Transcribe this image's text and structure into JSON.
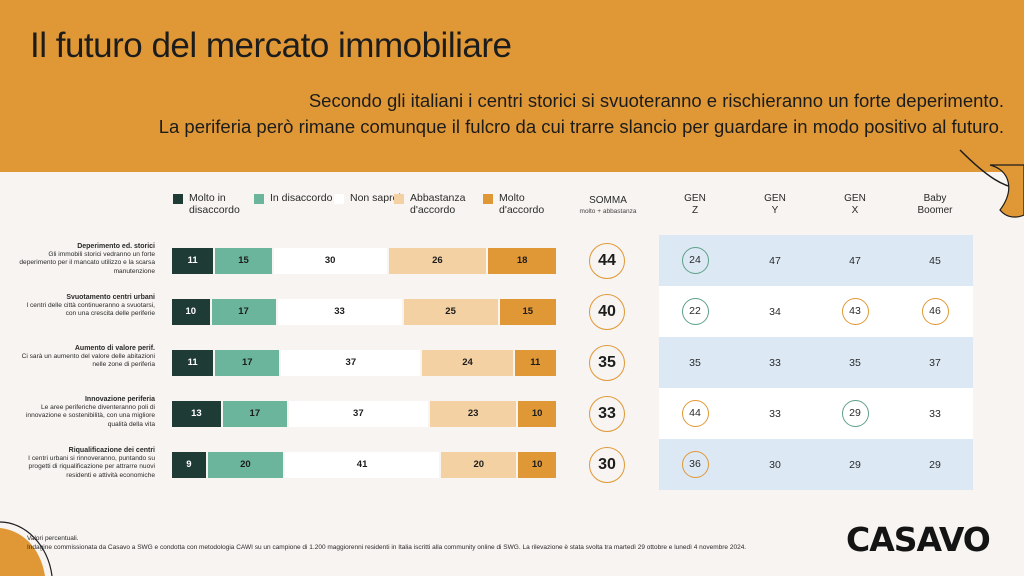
{
  "title": "Il futuro del mercato immobiliare",
  "subtitle_lines": [
    "Secondo gli italiani i centri storici si svuoteranno e rischieranno un forte deperimento.",
    "La periferia però rimane comunque il fulcro da cui trarre slancio per guardare in modo positivo al futuro."
  ],
  "colors": {
    "header": "#e09836",
    "molto_disaccordo": "#1f3b35",
    "disaccordo": "#6bb59c",
    "non_saprei": "#ffffff",
    "abbastanza": "#f3d1a3",
    "molto_accordo": "#e09836",
    "gen_band": "#dce8f4"
  },
  "legend": [
    {
      "label": "Molto in disaccordo",
      "color_key": "molto_disaccordo"
    },
    {
      "label": "In disaccordo",
      "color_key": "disaccordo"
    },
    {
      "label": "Non saprei",
      "color_key": "non_saprei"
    },
    {
      "label": "Abbastanza d'accordo",
      "color_key": "abbastanza"
    },
    {
      "label": "Molto d'accordo",
      "color_key": "molto_accordo"
    }
  ],
  "somma_header": {
    "title": "SOMMA",
    "sub": "molto + abbastanza"
  },
  "gen_headers": [
    "GEN\nZ",
    "GEN\nY",
    "GEN\nX",
    "Baby\nBoomer"
  ],
  "chart_data": {
    "type": "bar",
    "stacked": true,
    "orientation": "horizontal",
    "unit": "Valori percentuali",
    "categories": [
      {
        "title": "Deperimento ed. storici",
        "desc": "Gli immobili storici vedranno un forte deperimento per il mancato utilizzo e la scarsa manutenzione"
      },
      {
        "title": "Svuotamento centri urbani",
        "desc": "I centri delle città continueranno a svuotarsi, con una crescita delle periferie"
      },
      {
        "title": "Aumento di valore perif.",
        "desc": "Ci sarà un aumento del valore delle abitazioni nelle zone di periferia"
      },
      {
        "title": "Innovazione periferia",
        "desc": "Le aree periferiche diventeranno poli di innovazione e sostenibilità, con una migliore qualità della vita"
      },
      {
        "title": "Riqualificazione dei centri",
        "desc": "I centri urbani si rinnoveranno, puntando su progetti di riqualificazione per attrarre nuovi residenti e attività economiche"
      }
    ],
    "series": [
      {
        "name": "Molto in disaccordo",
        "values": [
          11,
          10,
          11,
          13,
          9
        ]
      },
      {
        "name": "In disaccordo",
        "values": [
          15,
          17,
          17,
          17,
          20
        ]
      },
      {
        "name": "Non saprei",
        "values": [
          30,
          33,
          37,
          37,
          41
        ]
      },
      {
        "name": "Abbastanza d'accordo",
        "values": [
          26,
          25,
          24,
          23,
          20
        ]
      },
      {
        "name": "Molto d'accordo",
        "values": [
          18,
          15,
          11,
          10,
          10
        ]
      }
    ],
    "somma": [
      44,
      40,
      35,
      33,
      30
    ],
    "generations": {
      "GEN Z": [
        24,
        22,
        35,
        44,
        36
      ],
      "GEN Y": [
        47,
        34,
        33,
        33,
        30
      ],
      "GEN X": [
        47,
        43,
        35,
        29,
        29
      ],
      "Baby Boomer": [
        45,
        46,
        37,
        33,
        29
      ]
    },
    "generation_highlights": [
      [
        "teal",
        null,
        null,
        null
      ],
      [
        "teal",
        null,
        "orange",
        "orange"
      ],
      [
        null,
        null,
        null,
        null
      ],
      [
        "orange",
        null,
        "teal",
        null
      ],
      [
        "orange",
        null,
        null,
        null
      ]
    ]
  },
  "footer": {
    "line1": "Valori percentuali.",
    "line2": "Indagine commissionata da Casavo a SWG e condotta con metodologia CAWI su un campione di 1.200 maggiorenni residenti in Italia iscritti alla community online di SWG. La rilevazione è stata svolta tra martedì 29 ottobre e lunedì 4 novembre 2024."
  },
  "logo": "CASAVO"
}
